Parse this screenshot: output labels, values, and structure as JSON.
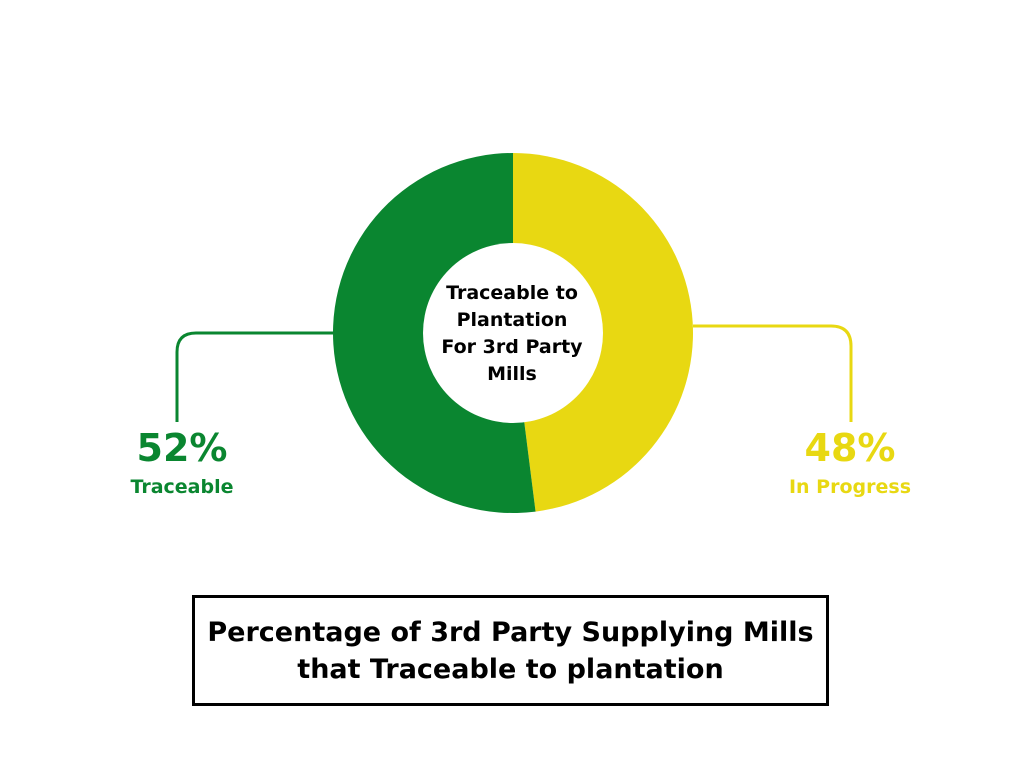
{
  "chart_data": {
    "type": "pie",
    "donut": true,
    "center_label": [
      "Traceable to",
      "Plantation",
      "For 3rd Party",
      "Mills"
    ],
    "slices": [
      {
        "label": "Traceable",
        "value": 52,
        "display": "52%",
        "color": "#0a8630"
      },
      {
        "label": "In Progress",
        "value": 48,
        "display": "48%",
        "color": "#e8d812"
      }
    ],
    "title_lines": [
      "Percentage of 3rd Party Supplying Mills",
      "that Traceable to plantation"
    ]
  }
}
